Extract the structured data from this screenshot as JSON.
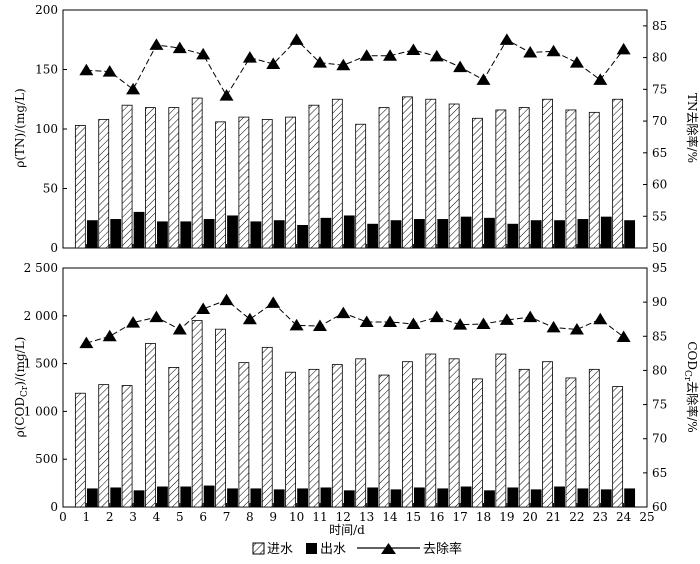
{
  "chart_data": [
    {
      "type": "bar",
      "x": [
        1,
        2,
        3,
        4,
        5,
        6,
        7,
        8,
        9,
        10,
        11,
        12,
        13,
        14,
        15,
        16,
        17,
        18,
        19,
        20,
        21,
        22,
        23,
        24
      ],
      "xlim": [
        0,
        25
      ],
      "ylabel": "ρ(TN)/(mg/L)",
      "ylim": [
        0,
        200
      ],
      "y_ticks": [
        0,
        50,
        100,
        150,
        200
      ],
      "y_tick_labels": [
        "0",
        "50",
        "100",
        "150",
        "200"
      ],
      "y2label": "TN去除率/%",
      "y2lim": [
        50,
        87.5
      ],
      "y2_ticks": [
        50,
        55,
        60,
        65,
        70,
        75,
        80,
        85
      ],
      "series": [
        {
          "name": "进水",
          "kind": "bar",
          "values": [
            103,
            108,
            120,
            118,
            118,
            126,
            106,
            110,
            108,
            110,
            120,
            125,
            104,
            118,
            127,
            125,
            121,
            109,
            116,
            118,
            125,
            116,
            114,
            125
          ]
        },
        {
          "name": "出水",
          "kind": "bar",
          "values": [
            23,
            24,
            30,
            22,
            22,
            24,
            27,
            22,
            23,
            19,
            25,
            27,
            20,
            23,
            24,
            24,
            26,
            25,
            20,
            23,
            23,
            24,
            26,
            23
          ]
        },
        {
          "name": "去除率",
          "kind": "line",
          "axis": "right",
          "values": [
            78.0,
            77.8,
            75.0,
            82.0,
            81.5,
            80.5,
            74.0,
            80.0,
            79.0,
            82.8,
            79.2,
            78.8,
            80.3,
            80.3,
            81.2,
            80.2,
            78.5,
            76.5,
            82.8,
            80.8,
            81.0,
            79.2,
            76.5,
            81.3
          ]
        }
      ]
    },
    {
      "type": "bar",
      "x": [
        1,
        2,
        3,
        4,
        5,
        6,
        7,
        8,
        9,
        10,
        11,
        12,
        13,
        14,
        15,
        16,
        17,
        18,
        19,
        20,
        21,
        22,
        23,
        24
      ],
      "xlim": [
        0,
        25
      ],
      "x_tick_labels": [
        "0",
        "1",
        "2",
        "3",
        "4",
        "5",
        "6",
        "7",
        "8",
        "9",
        "10",
        "11",
        "12",
        "13",
        "14",
        "15",
        "16",
        "17",
        "18",
        "19",
        "20",
        "21",
        "22",
        "23",
        "24",
        "25"
      ],
      "xlabel": "时间/d",
      "ylabel_main": "ρ(COD",
      "ylabel_sub": "Cr",
      "ylabel_tail": ")/(mg/L)",
      "ylim": [
        0,
        2500
      ],
      "y_ticks": [
        0,
        500,
        1000,
        1500,
        2000,
        2500
      ],
      "y_tick_labels": [
        "0",
        "500",
        "1 000",
        "1 500",
        "2 000",
        "2 500"
      ],
      "y2label_main": "COD",
      "y2label_sub": "Cr",
      "y2label_tail": "去除率/%",
      "y2lim": [
        60,
        95
      ],
      "y2_ticks": [
        60,
        65,
        70,
        75,
        80,
        85,
        90,
        95
      ],
      "series": [
        {
          "name": "进水",
          "kind": "bar",
          "values": [
            1190,
            1280,
            1270,
            1710,
            1460,
            1950,
            1860,
            1510,
            1670,
            1410,
            1440,
            1490,
            1550,
            1380,
            1520,
            1600,
            1550,
            1340,
            1600,
            1440,
            1520,
            1350,
            1440,
            1260
          ]
        },
        {
          "name": "出水",
          "kind": "bar",
          "values": [
            190,
            200,
            170,
            210,
            210,
            220,
            190,
            190,
            180,
            190,
            200,
            170,
            200,
            180,
            200,
            190,
            210,
            170,
            200,
            180,
            210,
            190,
            180,
            190
          ]
        },
        {
          "name": "去除率",
          "kind": "line",
          "axis": "right",
          "values": [
            84.0,
            85.0,
            87.0,
            87.8,
            86.0,
            89.0,
            90.3,
            87.5,
            89.9,
            86.6,
            86.5,
            88.4,
            87.1,
            87.1,
            86.8,
            87.8,
            86.7,
            86.8,
            87.4,
            87.8,
            86.3,
            86.0,
            87.5,
            84.9
          ]
        }
      ]
    }
  ],
  "legend": {
    "inflow_label": "进水",
    "outflow_label": "出水",
    "removal_label": "去除率",
    "position": "bottom-center"
  },
  "colors": {
    "inflow_fill": "hatched",
    "outflow_fill": "#000000",
    "line": "#000000",
    "axis": "#000000"
  }
}
